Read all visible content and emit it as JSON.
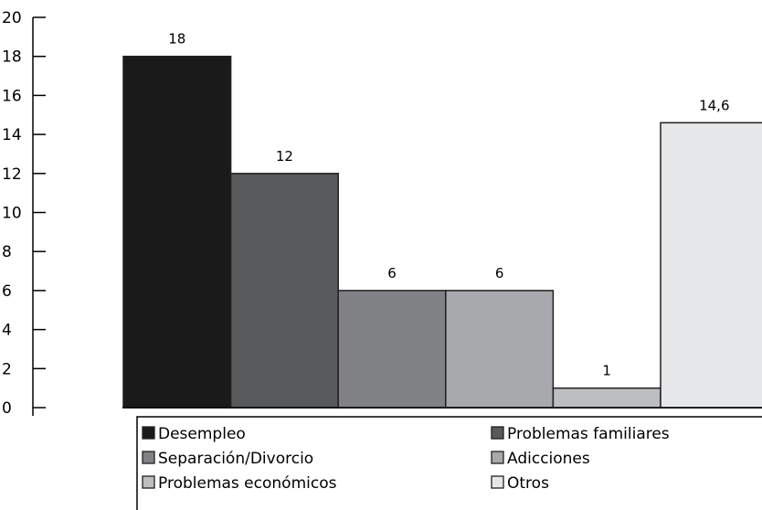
{
  "chart_data": {
    "type": "bar",
    "title": "",
    "xlabel": "",
    "ylabel": "",
    "ylim": [
      0,
      20
    ],
    "yticks": [
      0,
      2,
      4,
      6,
      8,
      10,
      12,
      14,
      16,
      18,
      20
    ],
    "grid": false,
    "legend_placement": "bottom",
    "categories": [
      "Desempleo",
      "Problemas familiares",
      "Separación/Divorcio",
      "Adicciones",
      "Problemas económicos",
      "Otros"
    ],
    "values": [
      18,
      12,
      6,
      6,
      1,
      14.6
    ],
    "value_labels": [
      "18",
      "12",
      "6",
      "6",
      "1",
      "14,6"
    ],
    "colors": [
      "#1a1a1a",
      "#58595b",
      "#808285",
      "#a7a9ac",
      "#bcbec0",
      "#e6e7e8"
    ]
  }
}
